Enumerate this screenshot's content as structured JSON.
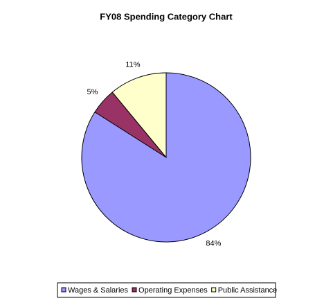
{
  "chart_data": {
    "type": "pie",
    "title": "FY08 Spending Category Chart",
    "categories": [
      "Wages & Salaries",
      "Operating Expenses",
      "Public Assistance"
    ],
    "values": [
      84,
      5,
      11
    ],
    "value_labels": [
      "84%",
      "5%",
      "11%"
    ],
    "colors": [
      "#9999ff",
      "#993366",
      "#ffffcc"
    ],
    "legend": "bottom"
  }
}
